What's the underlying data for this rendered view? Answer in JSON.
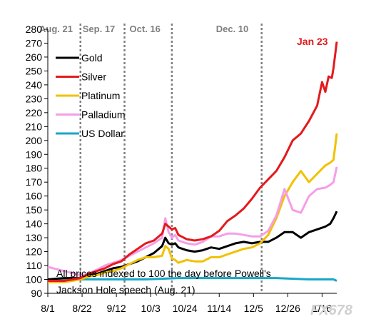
{
  "chart_data": {
    "type": "line",
    "title": "",
    "xlabel": "",
    "ylabel": "",
    "ylim": [
      90,
      280
    ],
    "y_ticks": [
      90,
      100,
      110,
      120,
      130,
      140,
      150,
      160,
      170,
      180,
      190,
      200,
      210,
      220,
      230,
      240,
      250,
      260,
      270,
      280
    ],
    "x_tick_labels": [
      "8/1",
      "8/22",
      "9/12",
      "10/3",
      "10/24",
      "11/14",
      "12/5",
      "12/26",
      "1/16"
    ],
    "x_domain_days": [
      0,
      177
    ],
    "x_tick_days": [
      0,
      21,
      42,
      63,
      84,
      105,
      126,
      147,
      168
    ],
    "event_lines": [
      {
        "label": "Aug. 21",
        "day": 20
      },
      {
        "label": "Sep. 17",
        "day": 47
      },
      {
        "label": "Oct. 16",
        "day": 76
      },
      {
        "label": "Dec. 10",
        "day": 131
      }
    ],
    "end_label": "Jan 23",
    "legend_position": "upper-left",
    "grid": false,
    "note_lines": [
      "All prices indexed to 100 the day before Powell's",
      "Jackson Hole speech (Aug. 21)"
    ],
    "series": [
      {
        "name": "Gold",
        "color": "#000000",
        "x": [
          0,
          10,
          20,
          25,
          30,
          35,
          40,
          45,
          50,
          55,
          60,
          65,
          70,
          72,
          74,
          76,
          78,
          80,
          85,
          90,
          95,
          100,
          105,
          110,
          115,
          120,
          125,
          130,
          135,
          140,
          145,
          150,
          155,
          160,
          165,
          170,
          173,
          175,
          177
        ],
        "y": [
          100,
          101,
          101,
          103,
          104,
          106,
          108,
          109,
          111,
          113,
          116,
          119,
          124,
          130,
          126,
          125,
          126,
          123,
          121,
          120,
          121,
          123,
          122,
          124,
          126,
          127,
          126,
          127,
          127,
          130,
          134,
          134,
          130,
          134,
          136,
          138,
          140,
          144,
          149
        ]
      },
      {
        "name": "Silver",
        "color": "#e31a1c",
        "x": [
          0,
          10,
          20,
          25,
          30,
          35,
          40,
          45,
          50,
          55,
          60,
          65,
          70,
          72,
          74,
          76,
          78,
          80,
          85,
          90,
          95,
          100,
          105,
          110,
          115,
          120,
          125,
          130,
          135,
          140,
          145,
          150,
          155,
          160,
          165,
          168,
          170,
          172,
          174,
          175,
          177
        ],
        "y": [
          99,
          99,
          101,
          104,
          106,
          108,
          111,
          113,
          118,
          122,
          126,
          128,
          133,
          140,
          138,
          136,
          137,
          132,
          129,
          128,
          129,
          131,
          135,
          142,
          146,
          151,
          158,
          166,
          172,
          178,
          188,
          200,
          205,
          214,
          225,
          242,
          235,
          246,
          245,
          252,
          271
        ]
      },
      {
        "name": "Platinum",
        "color": "#f2c100",
        "x": [
          0,
          10,
          20,
          25,
          30,
          35,
          40,
          45,
          50,
          55,
          60,
          65,
          70,
          72,
          74,
          76,
          78,
          80,
          85,
          90,
          95,
          100,
          105,
          110,
          115,
          120,
          125,
          130,
          135,
          140,
          145,
          150,
          155,
          160,
          165,
          170,
          173,
          175,
          177
        ],
        "y": [
          98,
          98,
          100,
          102,
          103,
          105,
          106,
          108,
          111,
          114,
          116,
          116,
          117,
          124,
          122,
          115,
          114,
          112,
          114,
          113,
          113,
          116,
          116,
          118,
          120,
          122,
          123,
          126,
          132,
          144,
          160,
          170,
          178,
          170,
          176,
          182,
          184,
          186,
          205
        ]
      },
      {
        "name": "Palladium",
        "color": "#f59ee8",
        "x": [
          0,
          10,
          20,
          25,
          30,
          35,
          40,
          45,
          50,
          55,
          60,
          65,
          70,
          72,
          74,
          76,
          78,
          80,
          85,
          90,
          95,
          100,
          105,
          110,
          115,
          120,
          125,
          130,
          135,
          140,
          145,
          150,
          155,
          160,
          165,
          170,
          173,
          175,
          177
        ],
        "y": [
          109,
          106,
          103,
          104,
          107,
          110,
          112,
          114,
          117,
          120,
          123,
          126,
          130,
          144,
          134,
          130,
          132,
          128,
          126,
          125,
          127,
          131,
          131,
          133,
          133,
          132,
          131,
          131,
          135,
          146,
          165,
          150,
          148,
          160,
          165,
          166,
          168,
          170,
          181
        ]
      },
      {
        "name": "US Dollar",
        "color": "#17a7c8",
        "x": [
          0,
          20,
          40,
          60,
          80,
          100,
          120,
          140,
          160,
          170,
          175,
          177
        ],
        "y": [
          100,
          100,
          100,
          100,
          101,
          101,
          101,
          101,
          100,
          100,
          100,
          99
        ]
      }
    ]
  },
  "watermark": "FX678"
}
